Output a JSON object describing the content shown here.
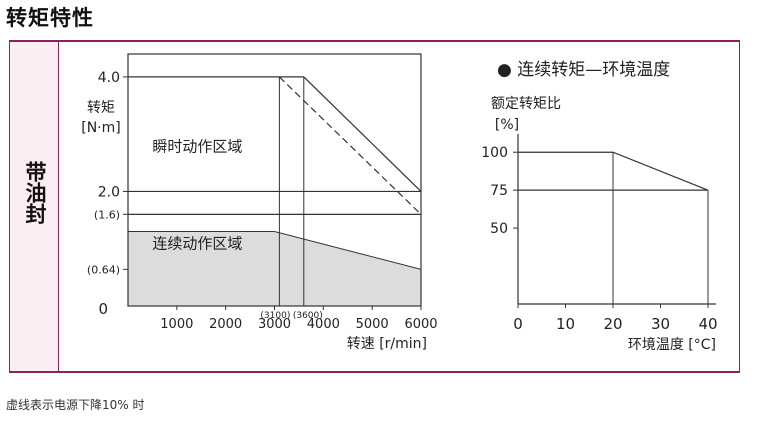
{
  "page": {
    "title": "转矩特性",
    "side_label": "带油封",
    "footnote": "虚线表示电源下降10% 时"
  },
  "chart_data": [
    {
      "type": "line",
      "ylabel_line1": "转矩",
      "ylabel_line2": "[N·m]",
      "xlabel": "转速 [r/min]",
      "xlim": [
        0,
        6000
      ],
      "ylim": [
        0,
        4.4
      ],
      "x_origin_label": "0",
      "y_origin_label": "0",
      "xticks": [
        1000,
        2000,
        3000,
        4000,
        5000,
        6000
      ],
      "xtick_labels": [
        "1000",
        "2000",
        "3000",
        "4000",
        "5000",
        "6000"
      ],
      "yticks": [
        {
          "value": 4.0,
          "label": "4.0"
        },
        {
          "value": 2.0,
          "label": "2.0"
        },
        {
          "value": 1.6,
          "label": "(1.6)"
        },
        {
          "value": 0.64,
          "label": "(0.64)"
        }
      ],
      "marker_lines": [
        {
          "x": 3100,
          "label": "(3100)"
        },
        {
          "x": 3600,
          "label": "(3600)"
        }
      ],
      "regions": [
        {
          "name": "瞬时动作区域",
          "label_x": 500,
          "label_y": 2.7
        },
        {
          "name": "连续动作区域",
          "label_x": 500,
          "label_y": 1.0
        }
      ],
      "series": [
        {
          "style": "solid",
          "x": [
            0,
            3600,
            6000
          ],
          "y": [
            4.0,
            4.0,
            2.0
          ]
        },
        {
          "style": "dashed",
          "x": [
            3100,
            6000
          ],
          "y": [
            4.0,
            1.6
          ]
        },
        {
          "style": "solid",
          "x": [
            0,
            6000
          ],
          "y": [
            2.0,
            2.0
          ]
        },
        {
          "style": "solid",
          "x": [
            0,
            6000
          ],
          "y": [
            1.6,
            1.6
          ]
        },
        {
          "style": "filled",
          "x": [
            0,
            3000,
            6000
          ],
          "y": [
            1.3,
            1.3,
            0.64
          ]
        }
      ]
    },
    {
      "type": "line",
      "legend": "● 连续转矩—环境温度",
      "ylabel_line1": "额定转矩比",
      "ylabel_line2": "[%]",
      "xlabel": "环境温度 [°C]",
      "xlim": [
        0,
        40
      ],
      "ylim": [
        0,
        112
      ],
      "xticks": [
        0,
        10,
        20,
        30,
        40
      ],
      "xtick_labels": [
        "0",
        "10",
        "20",
        "30",
        "40"
      ],
      "yticks": [
        {
          "value": 100,
          "label": "100"
        },
        {
          "value": 75,
          "label": "75"
        },
        {
          "value": 50,
          "label": "50"
        }
      ],
      "series": [
        {
          "style": "solid",
          "x": [
            0,
            20,
            40
          ],
          "y": [
            100,
            100,
            75
          ]
        },
        {
          "style": "solid",
          "x": [
            0,
            40
          ],
          "y": [
            75,
            75
          ]
        }
      ]
    }
  ]
}
